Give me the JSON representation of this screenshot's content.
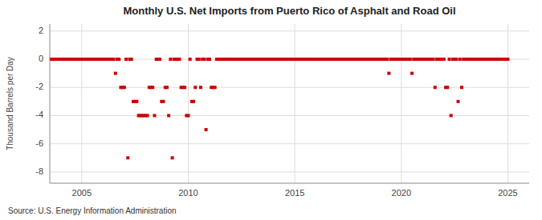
{
  "chart_data": {
    "type": "scatter",
    "title": "Monthly U.S. Net Imports from Puerto Rico of Asphalt and Road Oil",
    "ylabel": "Thousand Barrels per Day",
    "source": "Source: U.S. Energy Information Administration",
    "xlim": [
      2003.5,
      2026.0
    ],
    "ylim": [
      -8.8,
      2.5
    ],
    "xticks": [
      2005,
      2010,
      2015,
      2020,
      2025
    ],
    "yticks": [
      -8,
      -6,
      -4,
      -2,
      0,
      2
    ],
    "grid": true,
    "color": "#cc0000",
    "marker": "square",
    "x": [
      2003.583,
      2003.667,
      2003.75,
      2003.833,
      2003.917,
      2004.0,
      2004.083,
      2004.167,
      2004.25,
      2004.333,
      2004.417,
      2004.5,
      2004.583,
      2004.667,
      2004.75,
      2004.833,
      2004.917,
      2005.0,
      2005.083,
      2005.167,
      2005.25,
      2005.333,
      2005.417,
      2005.5,
      2005.583,
      2005.667,
      2005.75,
      2005.833,
      2005.917,
      2006.0,
      2006.083,
      2006.167,
      2006.25,
      2006.333,
      2006.417,
      2006.5,
      2006.583,
      2006.667,
      2006.75,
      2006.833,
      2006.917,
      2007.0,
      2007.083,
      2007.167,
      2007.25,
      2007.333,
      2007.417,
      2007.5,
      2007.583,
      2007.667,
      2007.75,
      2007.833,
      2007.917,
      2008.0,
      2008.083,
      2008.167,
      2008.25,
      2008.333,
      2008.417,
      2008.5,
      2008.583,
      2008.667,
      2008.75,
      2008.833,
      2008.917,
      2009.0,
      2009.083,
      2009.167,
      2009.25,
      2009.333,
      2009.417,
      2009.5,
      2009.583,
      2009.667,
      2009.75,
      2009.833,
      2009.917,
      2010.0,
      2010.083,
      2010.167,
      2010.25,
      2010.333,
      2010.417,
      2010.5,
      2010.583,
      2010.667,
      2010.75,
      2010.833,
      2010.917,
      2011.0,
      2011.083,
      2011.167,
      2011.25,
      2011.333,
      2011.417,
      2011.5,
      2011.583,
      2011.667,
      2011.75,
      2011.833,
      2011.917,
      2012.0,
      2012.083,
      2012.167,
      2012.25,
      2012.333,
      2012.417,
      2012.5,
      2012.583,
      2012.667,
      2012.75,
      2012.833,
      2012.917,
      2013.0,
      2013.083,
      2013.167,
      2013.25,
      2013.333,
      2013.417,
      2013.5,
      2013.583,
      2013.667,
      2013.75,
      2013.833,
      2013.917,
      2014.0,
      2014.083,
      2014.167,
      2014.25,
      2014.333,
      2014.417,
      2014.5,
      2014.583,
      2014.667,
      2014.75,
      2014.833,
      2014.917,
      2015.0,
      2015.083,
      2015.167,
      2015.25,
      2015.333,
      2015.417,
      2015.5,
      2015.583,
      2015.667,
      2015.75,
      2015.833,
      2015.917,
      2016.0,
      2016.083,
      2016.167,
      2016.25,
      2016.333,
      2016.417,
      2016.5,
      2016.583,
      2016.667,
      2016.75,
      2016.833,
      2016.917,
      2017.0,
      2017.083,
      2017.167,
      2017.25,
      2017.333,
      2017.417,
      2017.5,
      2017.583,
      2017.667,
      2017.75,
      2017.833,
      2017.917,
      2018.0,
      2018.083,
      2018.167,
      2018.25,
      2018.333,
      2018.417,
      2018.5,
      2018.583,
      2018.667,
      2018.75,
      2018.833,
      2018.917,
      2019.0,
      2019.083,
      2019.167,
      2019.25,
      2019.333,
      2019.417,
      2019.5,
      2019.583,
      2019.667,
      2019.75,
      2019.833,
      2019.917,
      2020.0,
      2020.083,
      2020.167,
      2020.25,
      2020.333,
      2020.417,
      2020.5,
      2020.583,
      2020.667,
      2020.75,
      2020.833,
      2020.917,
      2021.0,
      2021.083,
      2021.167,
      2021.25,
      2021.333,
      2021.417,
      2021.5,
      2021.583,
      2021.667,
      2021.75,
      2021.833,
      2021.917,
      2022.0,
      2022.083,
      2022.167,
      2022.25,
      2022.333,
      2022.417,
      2022.5,
      2022.583,
      2022.667,
      2022.75,
      2022.833,
      2022.917,
      2023.0,
      2023.083,
      2023.167,
      2023.25,
      2023.333,
      2023.417,
      2023.5,
      2023.583,
      2023.667,
      2023.75,
      2023.833,
      2023.917,
      2024.0,
      2024.083,
      2024.167,
      2024.25,
      2024.333,
      2024.417,
      2024.5,
      2024.583,
      2024.667,
      2024.75,
      2024.833,
      2024.917,
      2025.0
    ],
    "values": [
      0,
      0,
      0,
      0,
      0,
      0,
      0,
      0,
      0,
      0,
      0,
      0,
      0,
      0,
      0,
      0,
      0,
      0,
      0,
      0,
      0,
      0,
      0,
      0,
      0,
      0,
      0,
      0,
      0,
      0,
      0,
      0,
      0,
      0,
      0,
      0,
      -1.0,
      0,
      0,
      -2.0,
      -2.0,
      -2.0,
      0,
      -7.0,
      0,
      0,
      -3.0,
      -3.0,
      -3.0,
      -4.0,
      -4.0,
      -4.0,
      -4.0,
      -4.0,
      -4.0,
      -2.0,
      -2.0,
      -2.0,
      -4.0,
      0,
      0,
      0,
      -3.0,
      -3.0,
      -2.0,
      -2.0,
      -4.0,
      0,
      -7.0,
      0,
      0,
      0,
      0,
      -2.0,
      -2.0,
      -2.0,
      -4.0,
      -4.0,
      0,
      -3.0,
      -3.0,
      -2.0,
      0,
      0,
      -2.0,
      0,
      0,
      -5.0,
      0,
      0,
      -2.0,
      -2.0,
      -2.0,
      0,
      0,
      0,
      0,
      0,
      0,
      0,
      0,
      0,
      0,
      0,
      0,
      0,
      0,
      0,
      0,
      0,
      0,
      0,
      0,
      0,
      0,
      0,
      0,
      0,
      0,
      0,
      0,
      0,
      0,
      0,
      0,
      0,
      0,
      0,
      0,
      0,
      0,
      0,
      0,
      0,
      0,
      0,
      0,
      0,
      0,
      0,
      0,
      0,
      0,
      0,
      0,
      0,
      0,
      0,
      0,
      0,
      0,
      0,
      0,
      0,
      0,
      0,
      0,
      0,
      0,
      0,
      0,
      0,
      0,
      0,
      0,
      0,
      0,
      0,
      0,
      0,
      0,
      0,
      0,
      0,
      0,
      0,
      0,
      0,
      0,
      0,
      0,
      0,
      0,
      0,
      0,
      0,
      0,
      0,
      0,
      0,
      -1.0,
      0,
      0,
      0,
      0,
      0,
      0,
      0,
      0,
      0,
      0,
      0,
      0,
      -1.0,
      0,
      0,
      0,
      0,
      0,
      0,
      0,
      0,
      0,
      0,
      0,
      0,
      -2.0,
      0,
      0,
      0,
      0,
      0,
      -2.0,
      -2.0,
      0,
      -4.0,
      0,
      0,
      0,
      -3.0,
      0,
      -2.0,
      0,
      0,
      0,
      0,
      0,
      0,
      0,
      0,
      0,
      0,
      0,
      0,
      0,
      0,
      0,
      0,
      0,
      0,
      0,
      0,
      0,
      0,
      0,
      0,
      0,
      0
    ]
  }
}
